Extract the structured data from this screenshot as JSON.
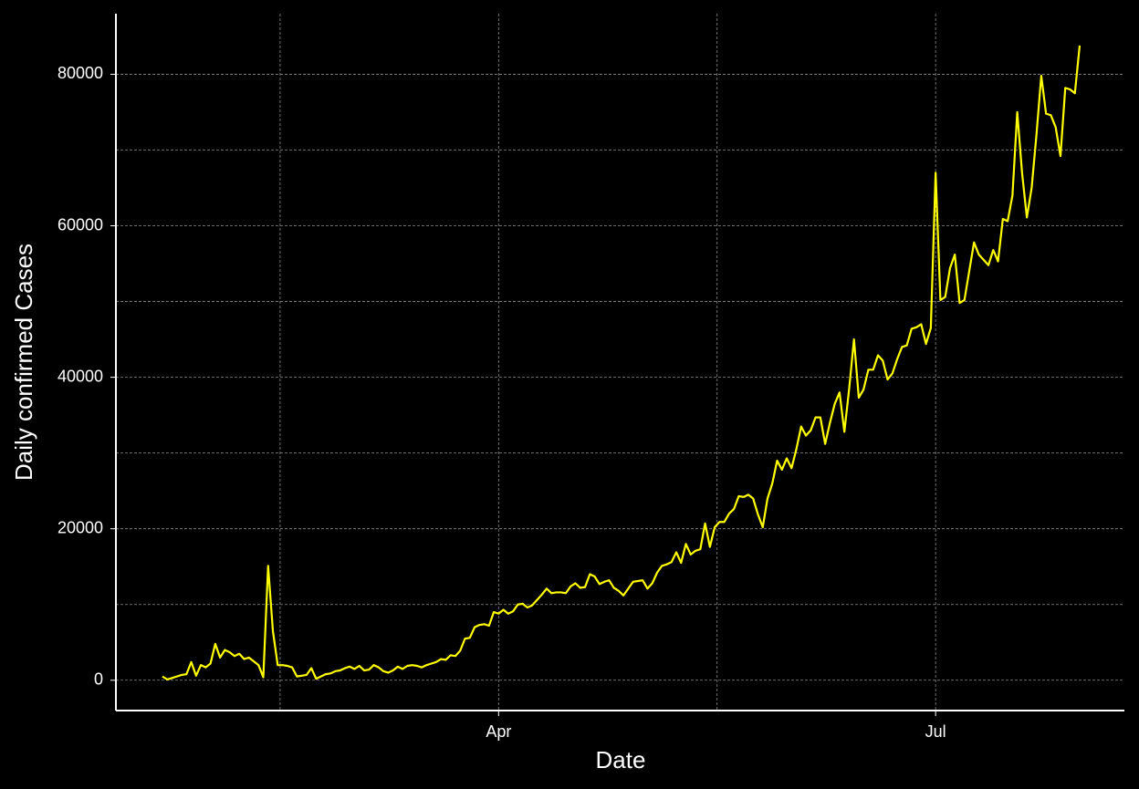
{
  "chart_data": {
    "type": "line",
    "xlabel": "Date",
    "ylabel": "Daily confirmed Cases",
    "categories": [
      null,
      null,
      null,
      null,
      null,
      null,
      null,
      null,
      null,
      null,
      null,
      null,
      null,
      null,
      null,
      null,
      null,
      null,
      null,
      null,
      null,
      null,
      null,
      null,
      null,
      null,
      null,
      null,
      null,
      null,
      null,
      null,
      null,
      null,
      null,
      null,
      null,
      null,
      null,
      null,
      null,
      null,
      null,
      null,
      null,
      null,
      null,
      null,
      null,
      null,
      null,
      null,
      null,
      null,
      null,
      null,
      null,
      null,
      null,
      null,
      null,
      null,
      null,
      null,
      null,
      null,
      null,
      null,
      null,
      null,
      "Apr",
      null,
      null,
      null,
      null,
      null,
      null,
      null,
      null,
      null,
      null,
      null,
      null,
      null,
      null,
      null,
      null,
      null,
      null,
      null,
      null,
      null,
      null,
      null,
      null,
      null,
      null,
      null,
      null,
      null,
      null,
      null,
      null,
      null,
      null,
      null,
      null,
      null,
      null,
      null,
      null,
      null,
      null,
      null,
      null,
      null,
      null,
      null,
      null,
      null,
      null,
      null,
      null,
      null,
      null,
      null,
      null,
      null,
      null,
      null,
      null,
      null,
      null,
      null,
      null,
      null,
      null,
      null,
      null,
      null,
      null,
      null,
      null,
      null,
      null,
      null,
      null,
      null,
      null,
      null,
      null,
      null,
      null,
      null,
      null,
      null,
      null,
      null,
      null,
      null,
      null,
      "Jul",
      null,
      null,
      null,
      null,
      null,
      null,
      null,
      null,
      null,
      null,
      null,
      null,
      null,
      null,
      null,
      null,
      null,
      null,
      null,
      null,
      null,
      null,
      null,
      null,
      null,
      null,
      null,
      null,
      null,
      null
    ],
    "values": [
      500,
      100,
      300,
      500,
      700,
      800,
      2400,
      600,
      2000,
      1700,
      2200,
      4800,
      3000,
      4000,
      3700,
      3200,
      3500,
      2800,
      3000,
      2500,
      2000,
      400,
      15100,
      6500,
      2000,
      2000,
      1900,
      1700,
      500,
      600,
      700,
      1600,
      200,
      500,
      800,
      900,
      1200,
      1300,
      1600,
      1800,
      1500,
      1900,
      1300,
      1400,
      2000,
      1700,
      1200,
      1000,
      1300,
      1800,
      1500,
      1900,
      2000,
      1900,
      1700,
      2000,
      2200,
      2400,
      2800,
      2700,
      3300,
      3200,
      3900,
      5500,
      5600,
      7000,
      7300,
      7400,
      7200,
      9000,
      8800,
      9300,
      8800,
      9100,
      10000,
      10100,
      9600,
      9900,
      10600,
      11300,
      12100,
      11500,
      11600,
      11600,
      11500,
      12400,
      12800,
      12200,
      12300,
      14000,
      13700,
      12700,
      13000,
      13200,
      12200,
      11800,
      11200,
      12100,
      13000,
      13100,
      13200,
      12100,
      12800,
      14200,
      15100,
      15300,
      15600,
      16900,
      15500,
      18000,
      16600,
      17100,
      17300,
      20700,
      17600,
      20200,
      20900,
      20900,
      22000,
      22600,
      24300,
      24200,
      24500,
      24000,
      21900,
      20200,
      24000,
      26000,
      29000,
      27800,
      29300,
      28000,
      30500,
      33500,
      32300,
      33000,
      34700,
      34700,
      31200,
      34000,
      36500,
      38000,
      32800,
      38500,
      45000,
      37300,
      38400,
      41000,
      41000,
      42900,
      42200,
      39700,
      40500,
      42400,
      44000,
      44200,
      46400,
      46600,
      47000,
      44400,
      46500,
      67000,
      50200,
      50600,
      54400,
      56200,
      49800,
      50200,
      54000,
      57800,
      56200,
      55500,
      54800,
      56800,
      55300,
      60900,
      60600,
      64000,
      75000,
      67000,
      61100,
      65000,
      72000,
      79800,
      74800,
      74600,
      73000,
      69200,
      78200,
      78000,
      77500,
      83800
    ],
    "color": "#ffff00",
    "ylim": [
      -4000,
      88000
    ],
    "yticks": [
      0,
      20000,
      40000,
      60000,
      80000
    ],
    "grid": true
  }
}
